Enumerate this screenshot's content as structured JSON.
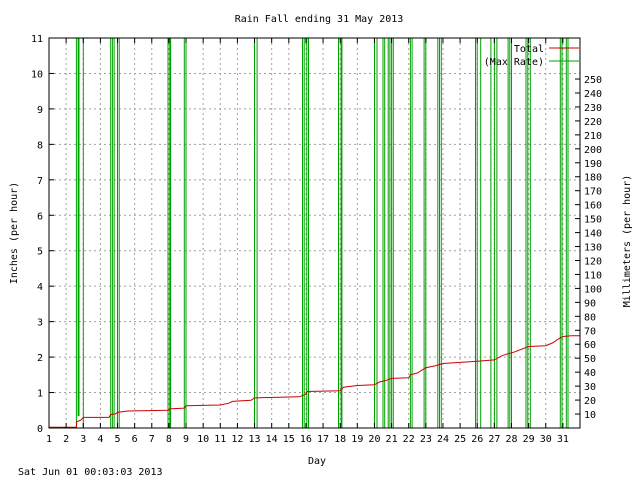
{
  "chart_data": {
    "type": "line",
    "title": "Rain Fall ending 31 May 2013",
    "xlabel": "Day",
    "ylabel": "Inches (per hour)",
    "y2label": "Millimeters (per hour)",
    "footer": "Sat Jun 01 00:03:03 2013",
    "xlim": [
      1,
      32
    ],
    "ylim": [
      0,
      11
    ],
    "y2lim": [
      0,
      279.4
    ],
    "x_ticks": [
      "1",
      "2",
      "3",
      "4",
      "5",
      "6",
      "7",
      "8",
      "9",
      "10",
      "11",
      "12",
      "13",
      "14",
      "15",
      "16",
      "17",
      "18",
      "19",
      "20",
      "21",
      "22",
      "23",
      "24",
      "25",
      "26",
      "27",
      "28",
      "29",
      "30",
      "31"
    ],
    "y_ticks": [
      "0",
      "1",
      "2",
      "3",
      "4",
      "5",
      "6",
      "7",
      "8",
      "9",
      "10",
      "11"
    ],
    "y2_ticks": [
      "10",
      "20",
      "30",
      "40",
      "50",
      "60",
      "70",
      "80",
      "90",
      "100",
      "110",
      "120",
      "130",
      "140",
      "150",
      "160",
      "170",
      "180",
      "190",
      "200",
      "210",
      "220",
      "230",
      "240",
      "250"
    ],
    "grid": true,
    "legend": {
      "placement": "top-right",
      "items": [
        {
          "label": "Total",
          "color": "#cc0000"
        },
        {
          "label": "(Max Rate)",
          "color": "#00a000"
        }
      ]
    },
    "series": [
      {
        "name": "Total",
        "color": "#cc0000",
        "x": [
          1,
          2.6,
          2.62,
          2.85,
          3.0,
          4.5,
          4.6,
          4.9,
          5.0,
          5.6,
          8.0,
          8.05,
          8.9,
          9.0,
          11.0,
          11.5,
          11.7,
          12.8,
          13.0,
          15.6,
          16.0,
          16.05,
          18.0,
          18.2,
          19.0,
          20.0,
          20.3,
          20.6,
          21.0,
          22.0,
          22.1,
          22.5,
          23.0,
          23.5,
          24.0,
          26.0,
          27.0,
          27.3,
          27.5,
          28.0,
          28.2,
          29.0,
          30.0,
          30.4,
          30.7,
          31.0,
          31.5,
          32.0
        ],
        "values": [
          0.02,
          0.02,
          0.18,
          0.22,
          0.3,
          0.3,
          0.38,
          0.4,
          0.44,
          0.48,
          0.5,
          0.54,
          0.56,
          0.63,
          0.65,
          0.7,
          0.75,
          0.78,
          0.85,
          0.88,
          0.95,
          1.03,
          1.05,
          1.15,
          1.2,
          1.22,
          1.3,
          1.33,
          1.4,
          1.42,
          1.5,
          1.55,
          1.7,
          1.75,
          1.82,
          1.88,
          1.92,
          2.0,
          2.05,
          2.12,
          2.15,
          2.3,
          2.32,
          2.4,
          2.5,
          2.58,
          2.6,
          2.6
        ]
      },
      {
        "name": "(Max Rate)",
        "color": "#00a000",
        "x": [
          1,
          2.6,
          2.6,
          2.7,
          2.7,
          2.75,
          2.75,
          3.0,
          3.0,
          4.6,
          4.6,
          4.7,
          4.7,
          4.8,
          4.8,
          5.0,
          5.0,
          5.1,
          5.1,
          7.95,
          7.95,
          8.05,
          8.05,
          8.1,
          8.1,
          8.9,
          8.9,
          9.0,
          9.0,
          13.0,
          13.0,
          13.15,
          13.15,
          15.8,
          15.8,
          15.9,
          15.9,
          16.05,
          16.05,
          16.15,
          16.15,
          17.9,
          17.9,
          18.05,
          18.05,
          18.1,
          18.1,
          20.0,
          20.0,
          20.15,
          20.15,
          20.5,
          20.5,
          20.6,
          20.6,
          20.8,
          20.8,
          20.9,
          20.9,
          21.0,
          21.0,
          21.1,
          21.1,
          22.1,
          22.1,
          22.2,
          22.2,
          22.9,
          22.9,
          23.0,
          23.0,
          23.7,
          23.7,
          23.8,
          23.8,
          23.9,
          23.9,
          25.9,
          25.9,
          26.0,
          26.0,
          26.2,
          26.2,
          26.8,
          26.8,
          27.0,
          27.0,
          27.15,
          27.15,
          27.8,
          27.8,
          27.9,
          27.9,
          28.0,
          28.0,
          28.85,
          28.85,
          28.95,
          28.95,
          29.1,
          29.1,
          30.85,
          30.85,
          30.95,
          30.95,
          31.2,
          31.2,
          31.3,
          31.3,
          32.0
        ],
        "values": [
          0,
          0,
          11,
          11,
          0.35,
          0.35,
          11,
          11,
          0,
          0,
          11,
          11,
          0,
          0,
          11,
          11,
          0,
          0,
          11,
          11,
          0,
          0,
          11,
          11,
          0,
          0,
          11,
          11,
          0,
          0,
          11,
          11,
          0,
          0,
          11,
          11,
          0,
          0,
          11,
          11,
          0,
          0,
          11,
          11,
          0,
          0,
          11,
          11,
          0,
          0,
          11,
          11,
          0,
          0,
          11,
          11,
          0,
          0,
          11,
          11,
          0,
          0,
          11,
          11,
          0,
          0,
          11,
          11,
          0,
          0,
          11,
          11,
          0,
          0,
          11,
          11,
          0,
          0,
          11,
          11,
          0,
          0,
          11,
          11,
          0,
          0,
          11,
          11,
          0,
          0,
          11,
          11,
          0,
          0,
          11,
          11,
          0,
          0,
          11,
          11,
          0,
          0,
          11,
          11,
          0,
          0,
          11,
          11,
          0,
          0
        ]
      }
    ]
  }
}
